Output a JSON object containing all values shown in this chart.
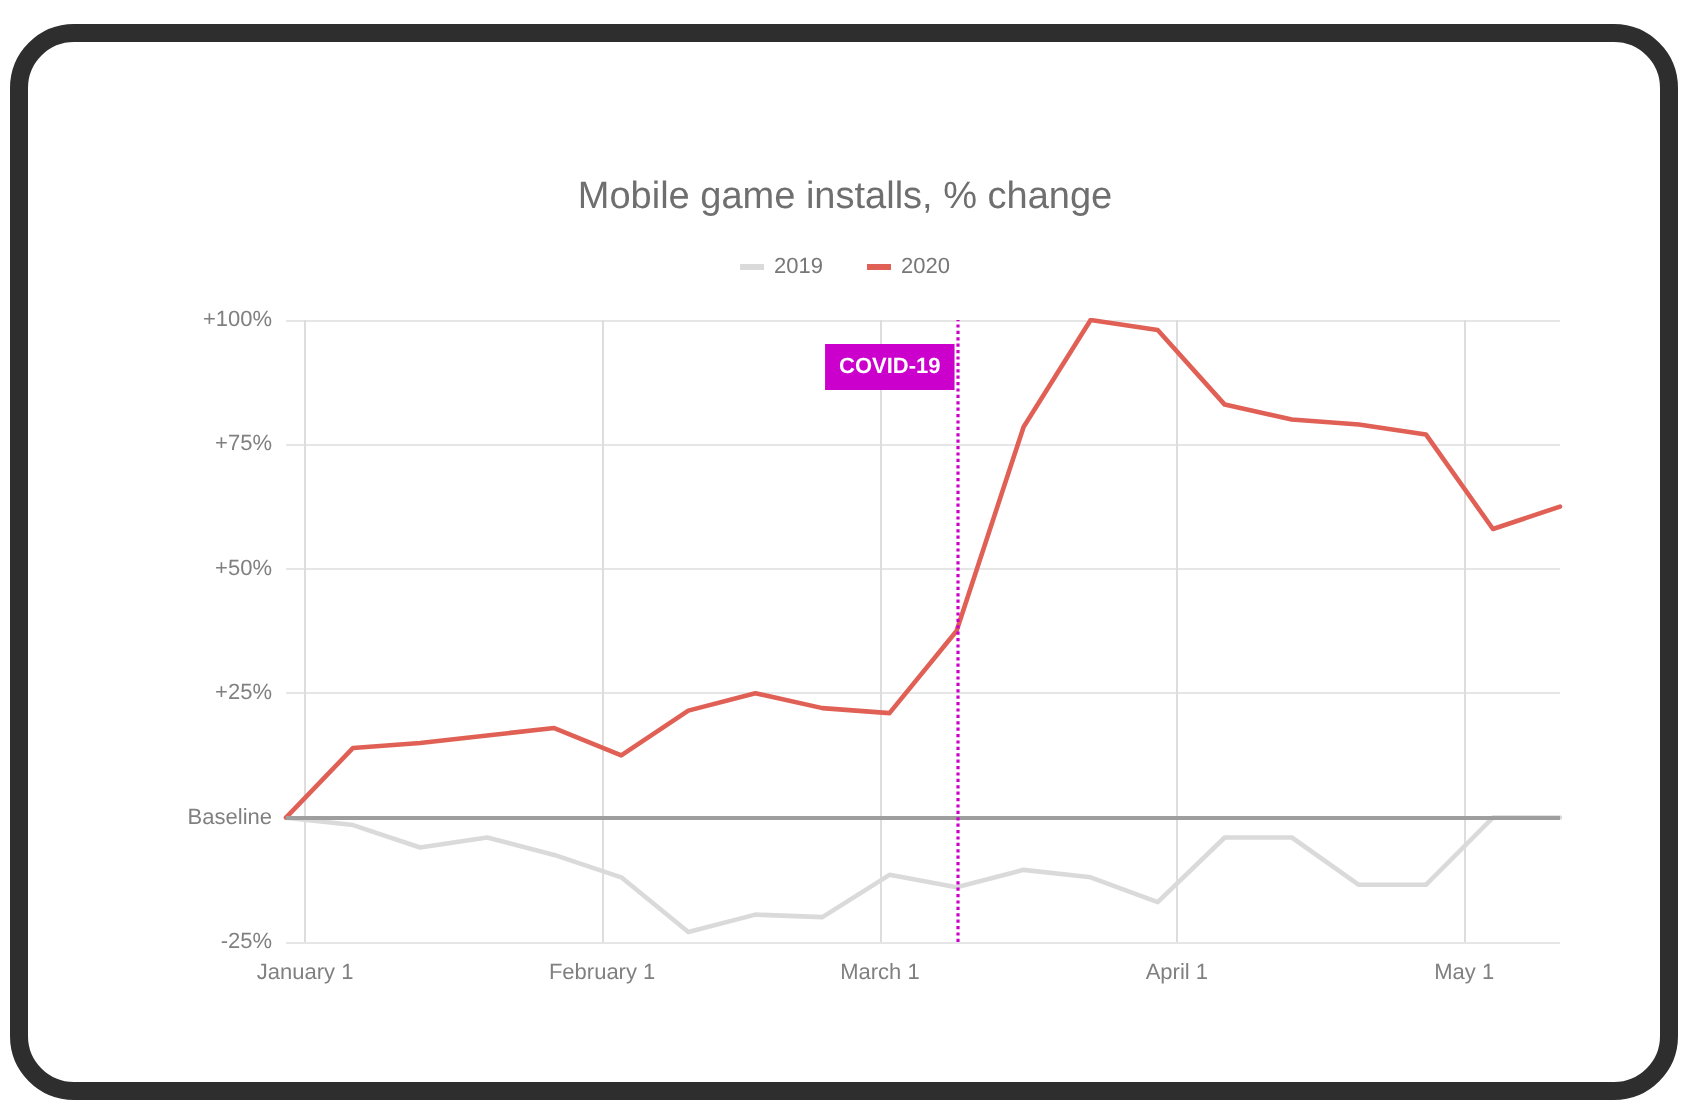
{
  "chart_data": {
    "type": "line",
    "title": "Mobile game installs, % change",
    "x": [
      "2019-12-30",
      "2020-01-06",
      "2020-01-13",
      "2020-01-20",
      "2020-01-27",
      "2020-02-03",
      "2020-02-10",
      "2020-02-17",
      "2020-02-24",
      "2020-03-02",
      "2020-03-09",
      "2020-03-16",
      "2020-03-23",
      "2020-03-30",
      "2020-04-06",
      "2020-04-13",
      "2020-04-20",
      "2020-04-27",
      "2020-05-04",
      "2020-05-11"
    ],
    "series": [
      {
        "name": "2019",
        "color": "#dadada",
        "values": [
          0,
          -1.5,
          -6,
          -4,
          -7.5,
          -12,
          -23,
          -19.5,
          -20,
          -11.5,
          -14,
          -10.5,
          -12,
          -17,
          -4,
          -4,
          -13.5,
          -13.5,
          0,
          0
        ]
      },
      {
        "name": "2020",
        "color": "#e06055",
        "values": [
          0,
          14,
          15,
          16.5,
          18,
          12.5,
          21.5,
          25,
          22,
          21,
          37.5,
          78.5,
          100,
          98,
          83,
          80,
          79,
          77,
          58,
          62.5
        ]
      }
    ],
    "xlim": [
      "2019-12-30",
      "2020-05-11"
    ],
    "xticks": [
      {
        "value": "2020-01-01",
        "label": "January 1"
      },
      {
        "value": "2020-02-01",
        "label": "February 1"
      },
      {
        "value": "2020-03-01",
        "label": "March 1"
      },
      {
        "value": "2020-04-01",
        "label": "April 1"
      },
      {
        "value": "2020-05-01",
        "label": "May 1"
      }
    ],
    "ylim": [
      -25,
      100
    ],
    "yticks": [
      {
        "value": -25,
        "label": "-25%"
      },
      {
        "value": 0,
        "label": "Baseline"
      },
      {
        "value": 25,
        "label": "+25%"
      },
      {
        "value": 50,
        "label": "+50%"
      },
      {
        "value": 75,
        "label": "+75%"
      },
      {
        "value": 100,
        "label": "+100%"
      }
    ],
    "grid": true,
    "legend": "top",
    "marker": "none",
    "line_style": "solid",
    "ref_lines": [
      {
        "axis": "y",
        "value": 0,
        "color": "#9e9e9e",
        "line_style": "solid"
      },
      {
        "axis": "x",
        "value": "2020-03-09",
        "label": "COVID-19",
        "color": "#cc00cc",
        "line_style": "dotted"
      }
    ]
  }
}
